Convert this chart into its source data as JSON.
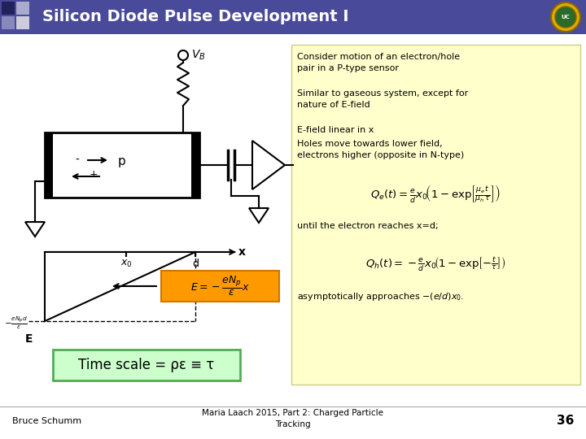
{
  "title": "Silicon Diode Pulse Development I",
  "title_bg": "#4a4a9a",
  "title_fg": "#ffffff",
  "slide_bg": "#ffffff",
  "right_panel_bg": "#ffffcc",
  "bullet_texts": [
    "Consider motion of an electron/hole\npair in a P-type sensor",
    "Similar to gaseous system, except for\nnature of E-field",
    "E-field linear in x",
    "Holes move towards lower field,\nelectrons higher (opposite in N-type)"
  ],
  "timescale_text": "Time scale = ρε ≡ τ",
  "timescale_bg": "#ccffcc",
  "footnote_center": "Maria Laach 2015, Part 2: Charged Particle\nTracking",
  "footnote_left": "Bruce Schumm",
  "footnote_right": "36"
}
